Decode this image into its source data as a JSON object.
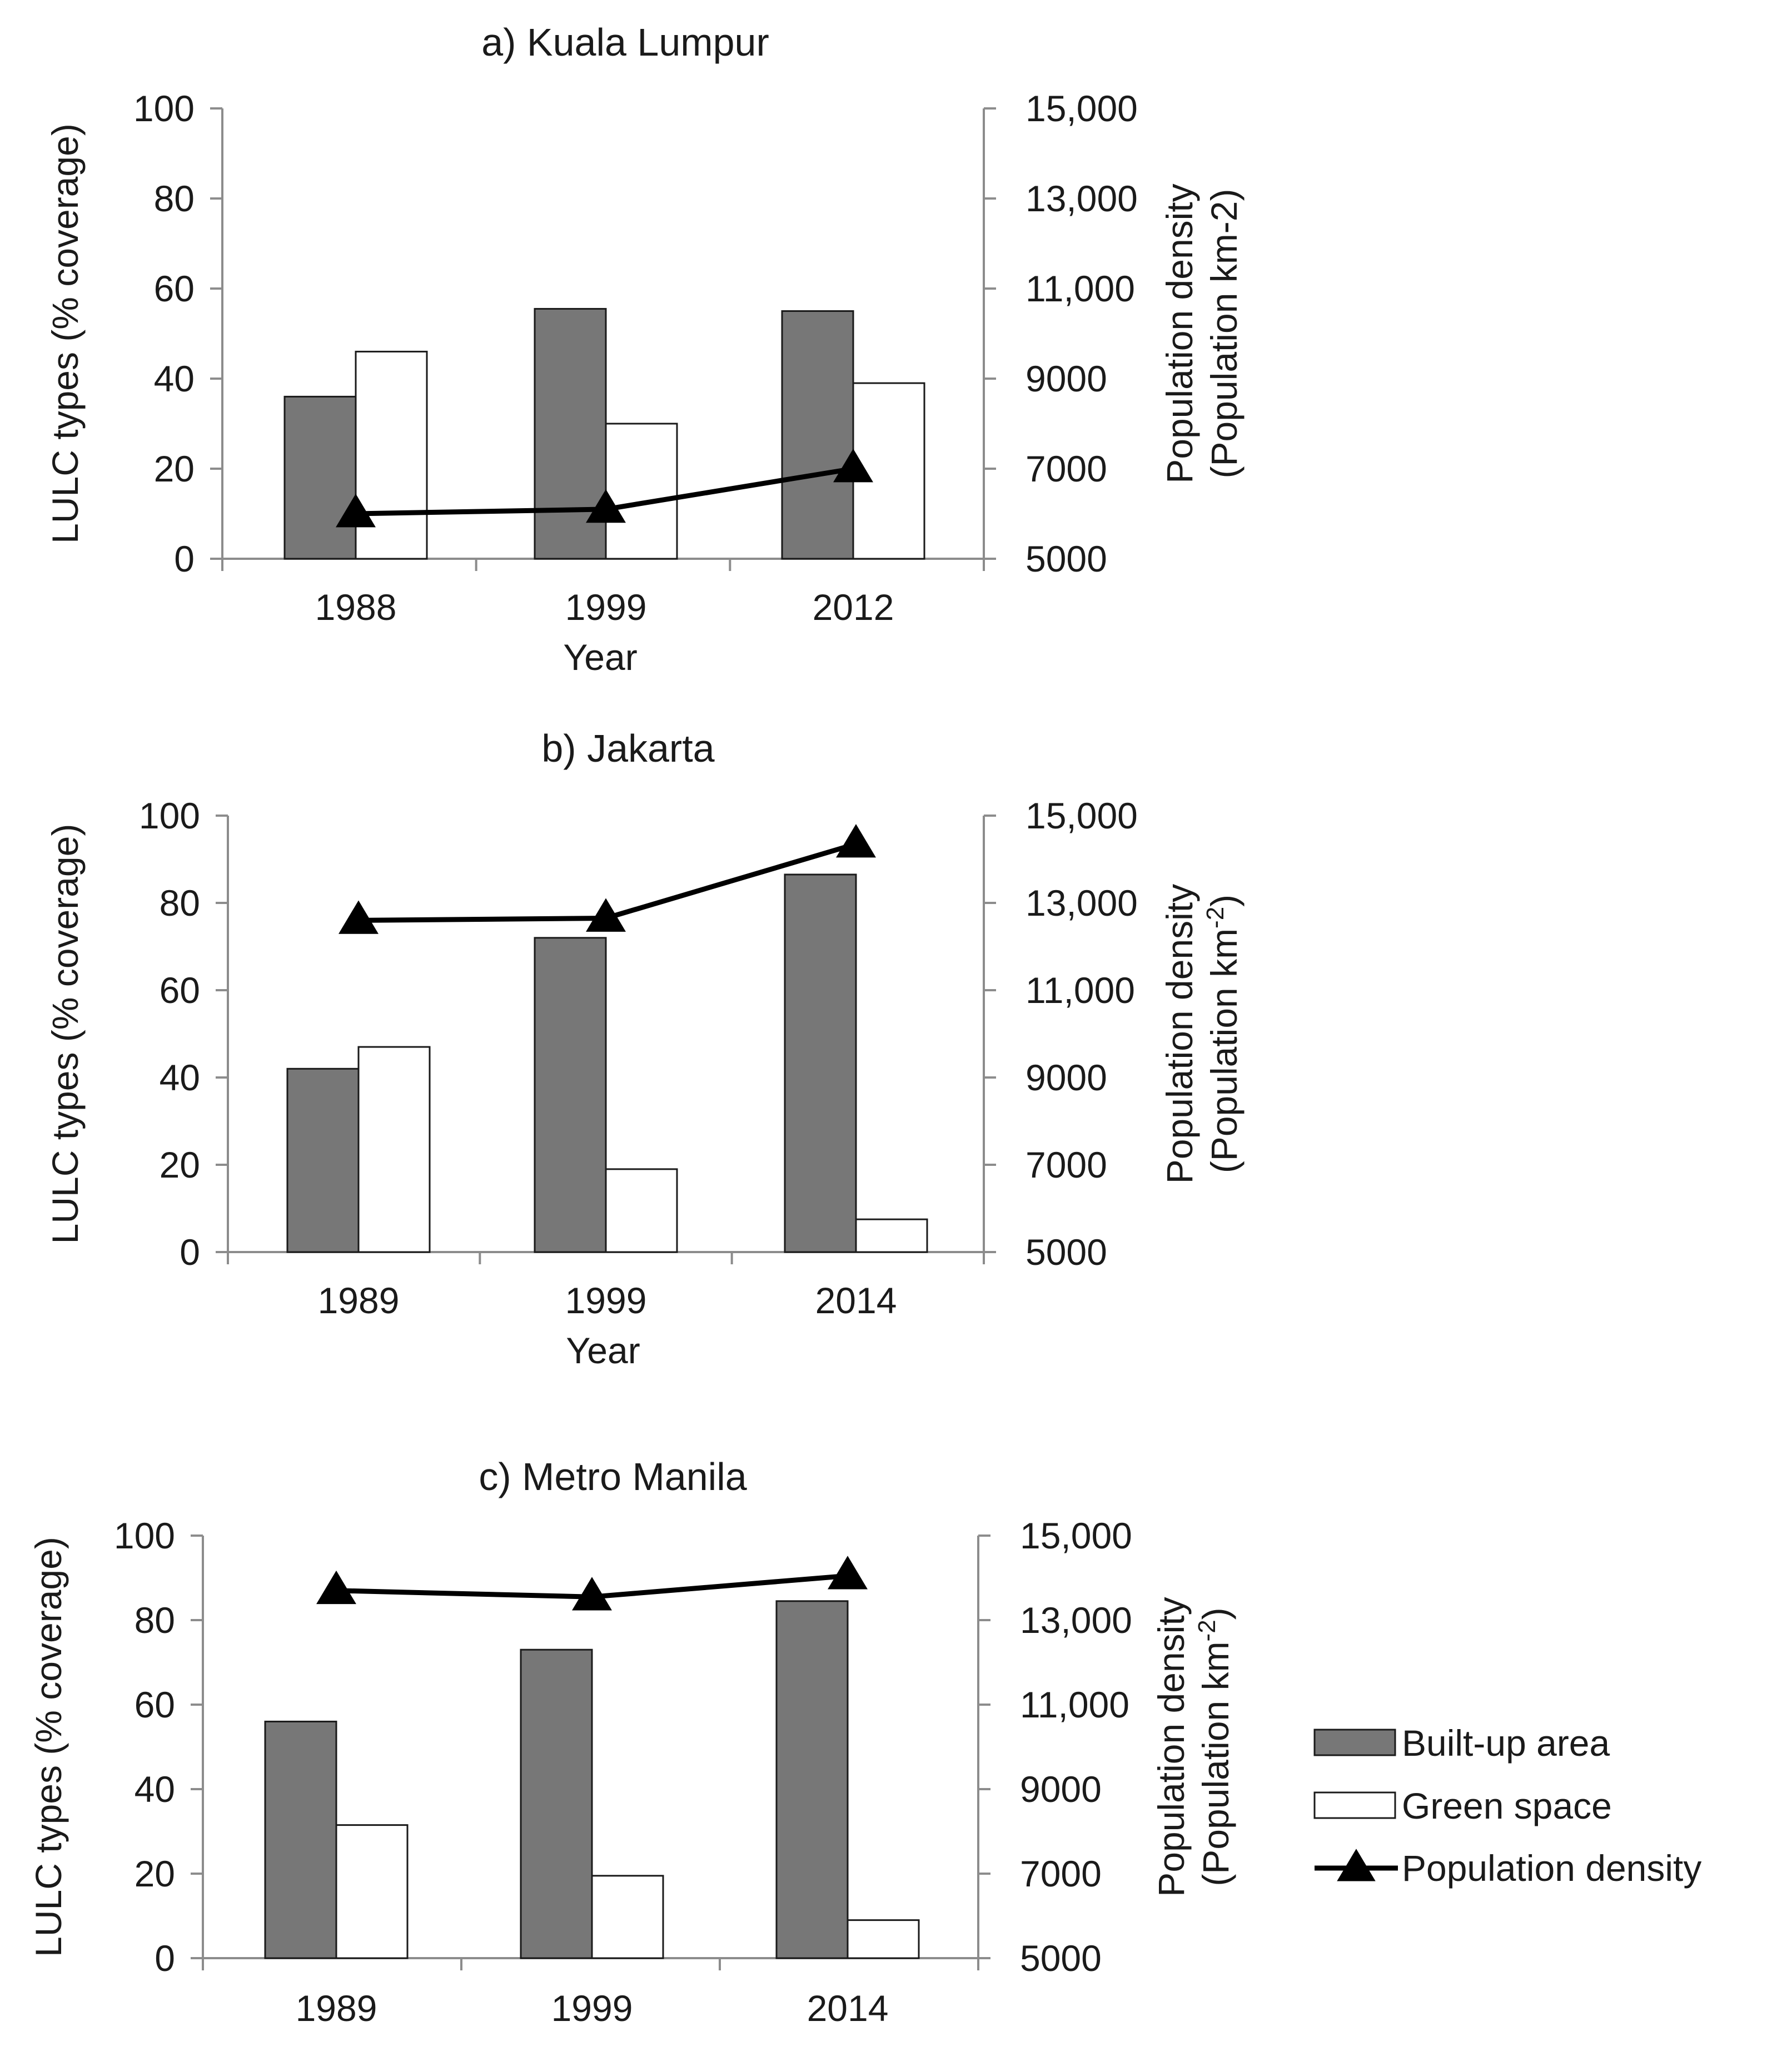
{
  "chart_data": [
    {
      "type": "bar",
      "title": "a) Kuala Lumpur",
      "categories": [
        "1988",
        "1999",
        "2012"
      ],
      "series": [
        {
          "name": "Built-up area",
          "axis": "left",
          "values": [
            36,
            55.5,
            55
          ]
        },
        {
          "name": "Green space",
          "axis": "left",
          "values": [
            46,
            30,
            39
          ]
        },
        {
          "name": "Population density",
          "axis": "right",
          "kind": "line",
          "values": [
            6000,
            6100,
            7000
          ]
        }
      ],
      "xlabel": "Year",
      "ylabel": "LULC types (% coverage)",
      "y2label_line1": "Population density",
      "y2label_line2": "(Population km-2)",
      "ylim": [
        0,
        100
      ],
      "y2lim": [
        5000,
        15000
      ],
      "yticks": [
        "0",
        "20",
        "40",
        "60",
        "80",
        "100"
      ],
      "y2ticks": [
        "5000",
        "7000",
        "9000",
        "11,000",
        "13,000",
        "15,000"
      ]
    },
    {
      "type": "bar",
      "title": "b) Jakarta",
      "categories": [
        "1989",
        "1999",
        "2014"
      ],
      "series": [
        {
          "name": "Built-up area",
          "axis": "left",
          "values": [
            42,
            72,
            86.5
          ]
        },
        {
          "name": "Green space",
          "axis": "left",
          "values": [
            47,
            19,
            7.5
          ]
        },
        {
          "name": "Population density",
          "axis": "right",
          "kind": "line",
          "values": [
            12600,
            12650,
            14350
          ]
        }
      ],
      "xlabel": "Year",
      "ylabel": "LULC types (% coverage)",
      "y2label_line1": "Population density",
      "y2label_line2": "(Population km",
      "y2label_sup": "-2",
      "y2label_close": ")",
      "ylim": [
        0,
        100
      ],
      "y2lim": [
        5000,
        15000
      ],
      "yticks": [
        "0",
        "20",
        "40",
        "60",
        "80",
        "100"
      ],
      "y2ticks": [
        "5000",
        "7000",
        "9000",
        "11,000",
        "13,000",
        "15,000"
      ]
    },
    {
      "type": "bar",
      "title": "c) Metro Manila",
      "categories": [
        "1989",
        "1999",
        "2014"
      ],
      "series": [
        {
          "name": "Built-up area",
          "axis": "left",
          "values": [
            56,
            73,
            84.5
          ]
        },
        {
          "name": "Green space",
          "axis": "left",
          "values": [
            31.5,
            19.5,
            9
          ]
        },
        {
          "name": "Population density",
          "axis": "right",
          "kind": "line",
          "values": [
            13700,
            13550,
            14050
          ]
        }
      ],
      "xlabel": "",
      "ylabel": "LULC types (% coverage)",
      "y2label_line1": "Population density",
      "y2label_line2": "(Population km",
      "y2label_sup": "-2",
      "y2label_close": ")",
      "ylim": [
        0,
        100
      ],
      "y2lim": [
        5000,
        15000
      ],
      "yticks": [
        "0",
        "20",
        "40",
        "60",
        "80",
        "100"
      ],
      "y2ticks": [
        "5000",
        "7000",
        "9000",
        "11,000",
        "13,000",
        "15,000"
      ]
    }
  ],
  "legend": {
    "placement": "right",
    "items": [
      {
        "label": "Built-up area",
        "style": "filled-box"
      },
      {
        "label": "Green space",
        "style": "empty-box"
      },
      {
        "label": "Population density",
        "style": "line-triangle"
      }
    ]
  },
  "colors": {
    "built": "#777777",
    "green": "#ffffff",
    "line": "#000000",
    "axis": "#8c8c8c",
    "text": "#1a1a1a"
  }
}
